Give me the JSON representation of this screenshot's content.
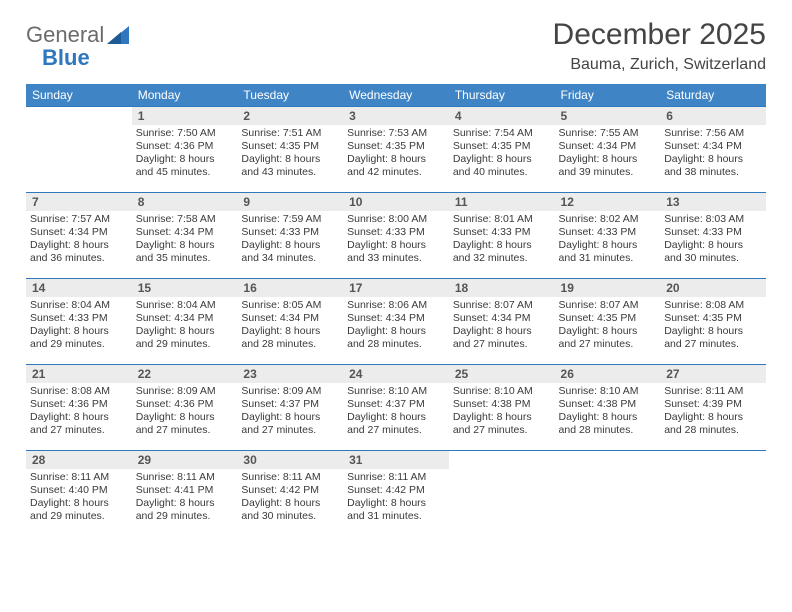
{
  "logo": {
    "word1": "General",
    "word2": "Blue"
  },
  "title": "December 2025",
  "location": "Bauma, Zurich, Switzerland",
  "colors": {
    "header_bg": "#3f85c6",
    "header_text": "#ffffff",
    "daynum_bg": "#ececec",
    "row_divider": "#2f78bf",
    "text": "#3a3a3a",
    "logo_gray": "#6b6b6b",
    "logo_blue": "#2f78bf"
  },
  "weekdays": [
    "Sunday",
    "Monday",
    "Tuesday",
    "Wednesday",
    "Thursday",
    "Friday",
    "Saturday"
  ],
  "weeks": [
    [
      null,
      {
        "n": "1",
        "sr": "Sunrise: 7:50 AM",
        "ss": "Sunset: 4:36 PM",
        "dl": "Daylight: 8 hours and 45 minutes."
      },
      {
        "n": "2",
        "sr": "Sunrise: 7:51 AM",
        "ss": "Sunset: 4:35 PM",
        "dl": "Daylight: 8 hours and 43 minutes."
      },
      {
        "n": "3",
        "sr": "Sunrise: 7:53 AM",
        "ss": "Sunset: 4:35 PM",
        "dl": "Daylight: 8 hours and 42 minutes."
      },
      {
        "n": "4",
        "sr": "Sunrise: 7:54 AM",
        "ss": "Sunset: 4:35 PM",
        "dl": "Daylight: 8 hours and 40 minutes."
      },
      {
        "n": "5",
        "sr": "Sunrise: 7:55 AM",
        "ss": "Sunset: 4:34 PM",
        "dl": "Daylight: 8 hours and 39 minutes."
      },
      {
        "n": "6",
        "sr": "Sunrise: 7:56 AM",
        "ss": "Sunset: 4:34 PM",
        "dl": "Daylight: 8 hours and 38 minutes."
      }
    ],
    [
      {
        "n": "7",
        "sr": "Sunrise: 7:57 AM",
        "ss": "Sunset: 4:34 PM",
        "dl": "Daylight: 8 hours and 36 minutes."
      },
      {
        "n": "8",
        "sr": "Sunrise: 7:58 AM",
        "ss": "Sunset: 4:34 PM",
        "dl": "Daylight: 8 hours and 35 minutes."
      },
      {
        "n": "9",
        "sr": "Sunrise: 7:59 AM",
        "ss": "Sunset: 4:33 PM",
        "dl": "Daylight: 8 hours and 34 minutes."
      },
      {
        "n": "10",
        "sr": "Sunrise: 8:00 AM",
        "ss": "Sunset: 4:33 PM",
        "dl": "Daylight: 8 hours and 33 minutes."
      },
      {
        "n": "11",
        "sr": "Sunrise: 8:01 AM",
        "ss": "Sunset: 4:33 PM",
        "dl": "Daylight: 8 hours and 32 minutes."
      },
      {
        "n": "12",
        "sr": "Sunrise: 8:02 AM",
        "ss": "Sunset: 4:33 PM",
        "dl": "Daylight: 8 hours and 31 minutes."
      },
      {
        "n": "13",
        "sr": "Sunrise: 8:03 AM",
        "ss": "Sunset: 4:33 PM",
        "dl": "Daylight: 8 hours and 30 minutes."
      }
    ],
    [
      {
        "n": "14",
        "sr": "Sunrise: 8:04 AM",
        "ss": "Sunset: 4:33 PM",
        "dl": "Daylight: 8 hours and 29 minutes."
      },
      {
        "n": "15",
        "sr": "Sunrise: 8:04 AM",
        "ss": "Sunset: 4:34 PM",
        "dl": "Daylight: 8 hours and 29 minutes."
      },
      {
        "n": "16",
        "sr": "Sunrise: 8:05 AM",
        "ss": "Sunset: 4:34 PM",
        "dl": "Daylight: 8 hours and 28 minutes."
      },
      {
        "n": "17",
        "sr": "Sunrise: 8:06 AM",
        "ss": "Sunset: 4:34 PM",
        "dl": "Daylight: 8 hours and 28 minutes."
      },
      {
        "n": "18",
        "sr": "Sunrise: 8:07 AM",
        "ss": "Sunset: 4:34 PM",
        "dl": "Daylight: 8 hours and 27 minutes."
      },
      {
        "n": "19",
        "sr": "Sunrise: 8:07 AM",
        "ss": "Sunset: 4:35 PM",
        "dl": "Daylight: 8 hours and 27 minutes."
      },
      {
        "n": "20",
        "sr": "Sunrise: 8:08 AM",
        "ss": "Sunset: 4:35 PM",
        "dl": "Daylight: 8 hours and 27 minutes."
      }
    ],
    [
      {
        "n": "21",
        "sr": "Sunrise: 8:08 AM",
        "ss": "Sunset: 4:36 PM",
        "dl": "Daylight: 8 hours and 27 minutes."
      },
      {
        "n": "22",
        "sr": "Sunrise: 8:09 AM",
        "ss": "Sunset: 4:36 PM",
        "dl": "Daylight: 8 hours and 27 minutes."
      },
      {
        "n": "23",
        "sr": "Sunrise: 8:09 AM",
        "ss": "Sunset: 4:37 PM",
        "dl": "Daylight: 8 hours and 27 minutes."
      },
      {
        "n": "24",
        "sr": "Sunrise: 8:10 AM",
        "ss": "Sunset: 4:37 PM",
        "dl": "Daylight: 8 hours and 27 minutes."
      },
      {
        "n": "25",
        "sr": "Sunrise: 8:10 AM",
        "ss": "Sunset: 4:38 PM",
        "dl": "Daylight: 8 hours and 27 minutes."
      },
      {
        "n": "26",
        "sr": "Sunrise: 8:10 AM",
        "ss": "Sunset: 4:38 PM",
        "dl": "Daylight: 8 hours and 28 minutes."
      },
      {
        "n": "27",
        "sr": "Sunrise: 8:11 AM",
        "ss": "Sunset: 4:39 PM",
        "dl": "Daylight: 8 hours and 28 minutes."
      }
    ],
    [
      {
        "n": "28",
        "sr": "Sunrise: 8:11 AM",
        "ss": "Sunset: 4:40 PM",
        "dl": "Daylight: 8 hours and 29 minutes."
      },
      {
        "n": "29",
        "sr": "Sunrise: 8:11 AM",
        "ss": "Sunset: 4:41 PM",
        "dl": "Daylight: 8 hours and 29 minutes."
      },
      {
        "n": "30",
        "sr": "Sunrise: 8:11 AM",
        "ss": "Sunset: 4:42 PM",
        "dl": "Daylight: 8 hours and 30 minutes."
      },
      {
        "n": "31",
        "sr": "Sunrise: 8:11 AM",
        "ss": "Sunset: 4:42 PM",
        "dl": "Daylight: 8 hours and 31 minutes."
      },
      null,
      null,
      null
    ]
  ]
}
